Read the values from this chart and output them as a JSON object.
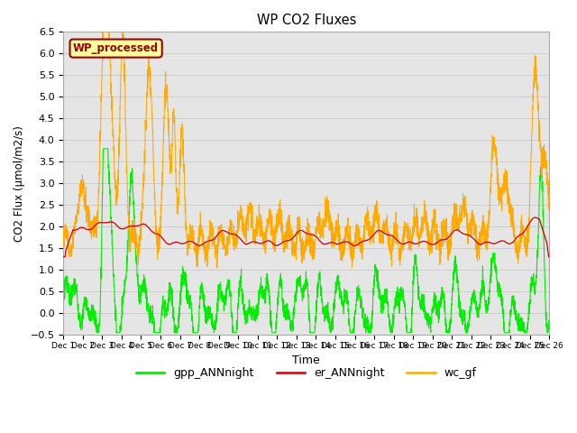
{
  "title": "WP CO2 Fluxes",
  "ylabel": "CO2 Flux (μmol/m2/s)",
  "xlabel": "Time",
  "ylim": [
    -0.5,
    6.5
  ],
  "legend_labels": [
    "gpp_ANNnight",
    "er_ANNnight",
    "wc_gf"
  ],
  "legend_colors": [
    "#00dd00",
    "#cc0000",
    "#ffaa00"
  ],
  "watermark_text": "WP_processed",
  "watermark_bg": "#ffff99",
  "watermark_fc": "#990000",
  "grid_color": "#cccccc",
  "bg_color": "#e5e5e5",
  "line_colors": {
    "gpp": "#00ee00",
    "er": "#cc0000",
    "wc": "#ffaa00"
  }
}
